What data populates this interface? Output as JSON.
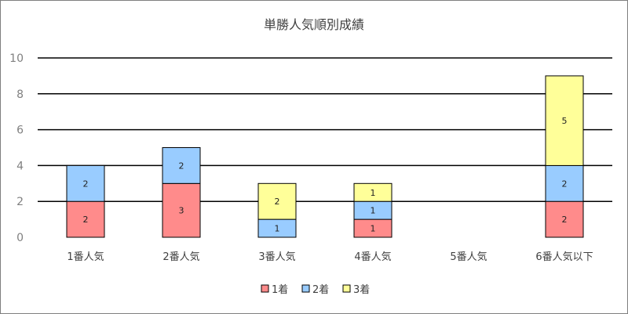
{
  "chart_data": {
    "type": "bar",
    "stacked": true,
    "title": "単勝人気順別成績",
    "categories": [
      "1番人気",
      "2番人気",
      "3番人気",
      "4番人気",
      "5番人気",
      "6番人気以下"
    ],
    "series": [
      {
        "name": "1着",
        "color": "#ff8b8b",
        "values": [
          2,
          3,
          0,
          1,
          0,
          2
        ]
      },
      {
        "name": "2着",
        "color": "#99ccff",
        "values": [
          2,
          2,
          1,
          1,
          0,
          2
        ]
      },
      {
        "name": "3着",
        "color": "#ffff99",
        "values": [
          0,
          0,
          2,
          1,
          0,
          5
        ]
      }
    ],
    "ylim": [
      0,
      10
    ],
    "yticks": [
      0,
      2,
      4,
      6,
      8,
      10
    ],
    "grid": true,
    "legend": "bottom"
  }
}
